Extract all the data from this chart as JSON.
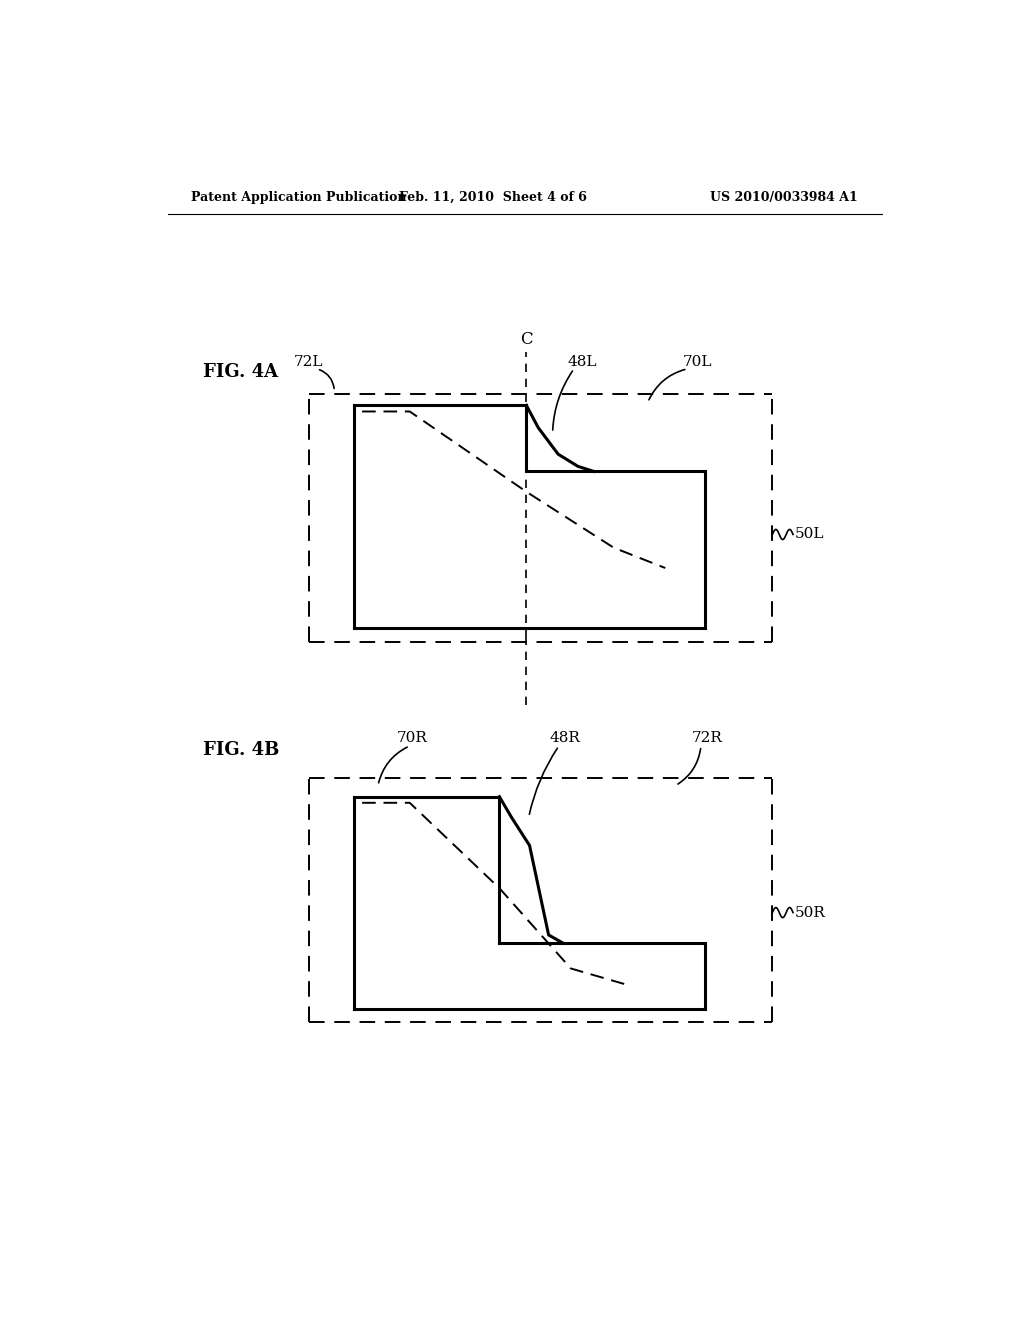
{
  "bg_color": "#ffffff",
  "text_color": "#000000",
  "header_left": "Patent Application Publication",
  "header_mid": "Feb. 11, 2010  Sheet 4 of 6",
  "header_right": "US 2010/0033984 A1",
  "fig4a_label": "FIG. 4A",
  "fig4b_label": "FIG. 4B",
  "c_label": "C"
}
